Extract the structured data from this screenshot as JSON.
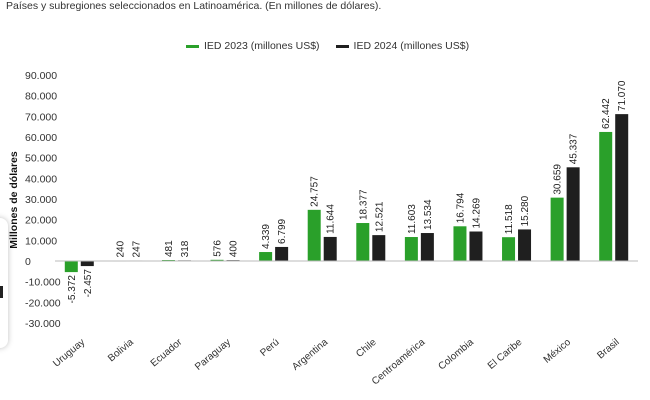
{
  "subtitle": "Países y subregiones seleccionados en Latinoamérica. (En millones de dólares).",
  "colors": {
    "ied_2023": "#2aa02a",
    "ied_2024": "#1f1f1f"
  },
  "chart_data": {
    "type": "bar",
    "ylabel": "Millones de dólares",
    "ylim": [
      -30000,
      90000
    ],
    "yticks": [
      {
        "value": 90000,
        "label": "90.000"
      },
      {
        "value": 80000,
        "label": "80.000"
      },
      {
        "value": 70000,
        "label": "70.000"
      },
      {
        "value": 60000,
        "label": "60.000"
      },
      {
        "value": 50000,
        "label": "50.000"
      },
      {
        "value": 40000,
        "label": "40.000"
      },
      {
        "value": 30000,
        "label": "30.000"
      },
      {
        "value": 20000,
        "label": "20.000"
      },
      {
        "value": 10000,
        "label": "10.000"
      },
      {
        "value": 0,
        "label": "0"
      },
      {
        "value": -10000,
        "label": "-10.000"
      },
      {
        "value": -20000,
        "label": "-20.000"
      },
      {
        "value": -30000,
        "label": "-30.000"
      }
    ],
    "legend_position": "top",
    "grid": false,
    "categories": [
      "Uruguay",
      "Bolivia",
      "Ecuador",
      "Paraguay",
      "Perú",
      "Argentina",
      "Chile",
      "Centroamérica",
      "Colombia",
      "El Caribe",
      "México",
      "Brasil"
    ],
    "series": [
      {
        "name": "IED 2023 (millones US$)",
        "color": "#2aa02a",
        "values": [
          -5372,
          240,
          481,
          576,
          4339,
          24757,
          18377,
          11603,
          16794,
          11518,
          30659,
          62442
        ],
        "labels": [
          "-5.372",
          "240",
          "481",
          "576",
          "4.339",
          "24.757",
          "18.377",
          "11.603",
          "16.794",
          "11.518",
          "30.659",
          "62.442"
        ]
      },
      {
        "name": "IED 2024 (millones US$)",
        "color": "#1f1f1f",
        "values": [
          -2457,
          247,
          318,
          400,
          6799,
          11644,
          12521,
          13534,
          14269,
          15280,
          45337,
          71070
        ],
        "labels": [
          "-2.457",
          "247",
          "318",
          "400",
          "6.799",
          "11.644",
          "12.521",
          "13.534",
          "14.269",
          "15.280",
          "45.337",
          "71.070"
        ]
      }
    ]
  }
}
